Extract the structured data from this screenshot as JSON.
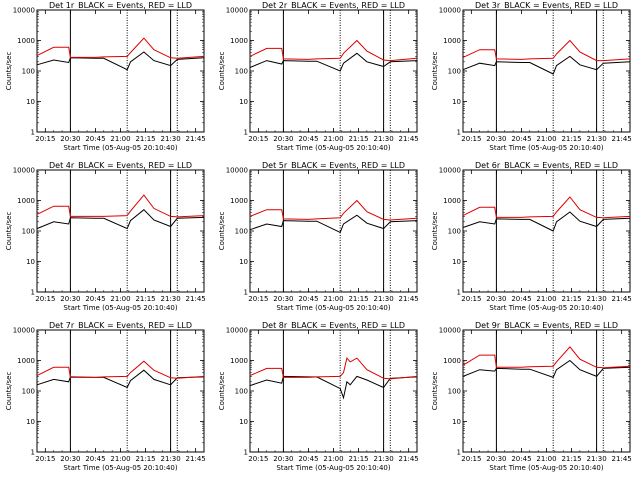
{
  "chart_data": [
    {
      "type": "line",
      "title": "Det 1r_BLACK = Events, RED = LLD",
      "xlabel": "Start Time (05-Aug-05 20:10:40)",
      "ylabel": "Counts/sec",
      "x_ticks": [
        "20:15",
        "20:30",
        "20:45",
        "21:00",
        "21:15",
        "21:30",
        "21:45"
      ],
      "y_ticks": [
        "1",
        "10",
        "100",
        "1000",
        "10000"
      ],
      "y_scale": "log",
      "ylim": [
        1,
        10000
      ],
      "xlim": [
        "20:10",
        "21:50"
      ],
      "vertical_markers": [
        "20:30",
        "21:04",
        "21:30",
        "21:34"
      ],
      "series": [
        {
          "name": "BLACK = Events",
          "color": "#000000",
          "x": [
            "20:10",
            "20:20",
            "20:29",
            "20:30",
            "20:45",
            "20:50",
            "21:04",
            "21:06",
            "21:14",
            "21:20",
            "21:30",
            "21:34",
            "21:50"
          ],
          "y": [
            160,
            230,
            190,
            270,
            260,
            260,
            110,
            200,
            420,
            220,
            150,
            240,
            270
          ]
        },
        {
          "name": "RED = LLD",
          "color": "#dd0000",
          "x": [
            "20:10",
            "20:20",
            "20:29",
            "20:30",
            "20:45",
            "20:50",
            "21:04",
            "21:06",
            "21:14",
            "21:20",
            "21:30",
            "21:34",
            "21:50"
          ],
          "y": [
            320,
            600,
            600,
            280,
            280,
            290,
            300,
            400,
            1200,
            500,
            270,
            260,
            300
          ]
        }
      ]
    },
    {
      "type": "line",
      "title": "Det 2r_BLACK = Events, RED = LLD",
      "xlabel": "Start Time (05-Aug-05 20:10:40)",
      "ylabel": "Counts/sec",
      "x_ticks": [
        "20:15",
        "20:30",
        "20:45",
        "21:00",
        "21:15",
        "21:30",
        "21:45"
      ],
      "y_ticks": [
        "1",
        "10",
        "100",
        "1000",
        "10000"
      ],
      "y_scale": "log",
      "ylim": [
        1,
        10000
      ],
      "xlim": [
        "20:10",
        "21:50"
      ],
      "vertical_markers": [
        "20:30",
        "21:04",
        "21:30",
        "21:34"
      ],
      "series": [
        {
          "name": "BLACK = Events",
          "color": "#000000",
          "x": [
            "20:10",
            "20:20",
            "20:29",
            "20:30",
            "20:45",
            "20:50",
            "21:04",
            "21:06",
            "21:14",
            "21:20",
            "21:30",
            "21:34",
            "21:50"
          ],
          "y": [
            130,
            220,
            170,
            220,
            210,
            210,
            100,
            180,
            380,
            200,
            140,
            200,
            220
          ]
        },
        {
          "name": "RED = LLD",
          "color": "#dd0000",
          "x": [
            "20:10",
            "20:20",
            "20:29",
            "20:30",
            "20:45",
            "20:50",
            "21:04",
            "21:06",
            "21:14",
            "21:20",
            "21:30",
            "21:34",
            "21:50"
          ],
          "y": [
            300,
            550,
            550,
            250,
            240,
            250,
            260,
            380,
            1000,
            450,
            230,
            220,
            260
          ]
        }
      ]
    },
    {
      "type": "line",
      "title": "Det 3r_BLACK = Events, RED = LLD",
      "xlabel": "Start Time (05-Aug-05 20:10:40)",
      "ylabel": "Counts/sec",
      "x_ticks": [
        "20:15",
        "20:30",
        "20:45",
        "21:00",
        "21:15",
        "21:30",
        "21:45"
      ],
      "y_ticks": [
        "1",
        "10",
        "100",
        "1000",
        "10000"
      ],
      "y_scale": "log",
      "ylim": [
        1,
        10000
      ],
      "xlim": [
        "20:10",
        "21:50"
      ],
      "vertical_markers": [
        "20:30",
        "21:04",
        "21:30",
        "21:34"
      ],
      "series": [
        {
          "name": "BLACK = Events",
          "color": "#000000",
          "x": [
            "20:10",
            "20:20",
            "20:29",
            "20:30",
            "20:45",
            "20:50",
            "21:04",
            "21:06",
            "21:14",
            "21:20",
            "21:30",
            "21:34",
            "21:50"
          ],
          "y": [
            110,
            180,
            150,
            200,
            190,
            190,
            80,
            150,
            300,
            160,
            110,
            180,
            200
          ]
        },
        {
          "name": "RED = LLD",
          "color": "#dd0000",
          "x": [
            "20:10",
            "20:20",
            "20:29",
            "20:30",
            "20:45",
            "20:50",
            "21:04",
            "21:06",
            "21:14",
            "21:20",
            "21:30",
            "21:34",
            "21:50"
          ],
          "y": [
            280,
            500,
            500,
            250,
            240,
            250,
            260,
            360,
            1000,
            420,
            220,
            220,
            250
          ]
        }
      ]
    },
    {
      "type": "line",
      "title": "Det 4r_BLACK = Events, RED = LLD",
      "xlabel": "Start Time (05-Aug-05 20:10:40)",
      "ylabel": "Counts/sec",
      "x_ticks": [
        "20:15",
        "20:30",
        "20:45",
        "21:00",
        "21:15",
        "21:30",
        "21:45"
      ],
      "y_ticks": [
        "1",
        "10",
        "100",
        "1000",
        "10000"
      ],
      "y_scale": "log",
      "ylim": [
        1,
        10000
      ],
      "xlim": [
        "20:10",
        "21:50"
      ],
      "vertical_markers": [
        "20:30",
        "21:04",
        "21:30",
        "21:34"
      ],
      "series": [
        {
          "name": "BLACK = Events",
          "color": "#000000",
          "x": [
            "20:10",
            "20:20",
            "20:29",
            "20:30",
            "20:45",
            "20:50",
            "21:04",
            "21:06",
            "21:14",
            "21:20",
            "21:30",
            "21:34",
            "21:50"
          ],
          "y": [
            120,
            200,
            170,
            270,
            260,
            260,
            120,
            220,
            500,
            230,
            140,
            260,
            280
          ]
        },
        {
          "name": "RED = LLD",
          "color": "#dd0000",
          "x": [
            "20:10",
            "20:20",
            "20:29",
            "20:30",
            "20:45",
            "20:50",
            "21:04",
            "21:06",
            "21:14",
            "21:20",
            "21:30",
            "21:34",
            "21:50"
          ],
          "y": [
            350,
            650,
            650,
            300,
            300,
            300,
            320,
            450,
            1500,
            550,
            300,
            290,
            320
          ]
        }
      ]
    },
    {
      "type": "line",
      "title": "Det 5r_BLACK = Events, RED = LLD",
      "xlabel": "Start Time (05-Aug-05 20:10:40)",
      "ylabel": "Counts/sec",
      "x_ticks": [
        "20:15",
        "20:30",
        "20:45",
        "21:00",
        "21:15",
        "21:30",
        "21:45"
      ],
      "y_ticks": [
        "1",
        "10",
        "100",
        "1000",
        "10000"
      ],
      "y_scale": "log",
      "ylim": [
        1,
        10000
      ],
      "xlim": [
        "20:10",
        "21:50"
      ],
      "vertical_markers": [
        "20:30",
        "21:04",
        "21:30",
        "21:34"
      ],
      "series": [
        {
          "name": "BLACK = Events",
          "color": "#000000",
          "x": [
            "20:10",
            "20:20",
            "20:29",
            "20:30",
            "20:45",
            "20:50",
            "21:04",
            "21:06",
            "21:14",
            "21:20",
            "21:30",
            "21:34",
            "21:50"
          ],
          "y": [
            110,
            170,
            140,
            220,
            210,
            210,
            90,
            170,
            330,
            180,
            120,
            200,
            220
          ]
        },
        {
          "name": "RED = LLD",
          "color": "#dd0000",
          "x": [
            "20:10",
            "20:20",
            "20:29",
            "20:30",
            "20:45",
            "20:50",
            "21:04",
            "21:06",
            "21:14",
            "21:20",
            "21:30",
            "21:34",
            "21:50"
          ],
          "y": [
            300,
            500,
            500,
            250,
            240,
            250,
            270,
            380,
            1000,
            430,
            240,
            230,
            260
          ]
        }
      ]
    },
    {
      "type": "line",
      "title": "Det 6r_BLACK = Events, RED = LLD",
      "xlabel": "Start Time (05-Aug-05 20:10:40)",
      "ylabel": "Counts/sec",
      "x_ticks": [
        "20:15",
        "20:30",
        "20:45",
        "21:00",
        "21:15",
        "21:30",
        "21:45"
      ],
      "y_ticks": [
        "1",
        "10",
        "100",
        "1000",
        "10000"
      ],
      "y_scale": "log",
      "ylim": [
        1,
        10000
      ],
      "xlim": [
        "20:10",
        "21:50"
      ],
      "vertical_markers": [
        "20:30",
        "21:04",
        "21:30",
        "21:34"
      ],
      "series": [
        {
          "name": "BLACK = Events",
          "color": "#000000",
          "x": [
            "20:10",
            "20:20",
            "20:29",
            "20:30",
            "20:45",
            "20:50",
            "21:04",
            "21:06",
            "21:14",
            "21:20",
            "21:30",
            "21:34",
            "21:50"
          ],
          "y": [
            130,
            200,
            170,
            250,
            240,
            240,
            100,
            200,
            420,
            210,
            140,
            240,
            260
          ]
        },
        {
          "name": "RED = LLD",
          "color": "#dd0000",
          "x": [
            "20:10",
            "20:20",
            "20:29",
            "20:30",
            "20:45",
            "20:50",
            "21:04",
            "21:06",
            "21:14",
            "21:20",
            "21:30",
            "21:34",
            "21:50"
          ],
          "y": [
            320,
            600,
            600,
            280,
            280,
            290,
            300,
            420,
            1300,
            500,
            280,
            270,
            300
          ]
        }
      ]
    },
    {
      "type": "line",
      "title": "Det 7r_BLACK = Events, RED = LLD",
      "xlabel": "Start Time (05-Aug-05 20:10:40)",
      "ylabel": "Counts/sec",
      "x_ticks": [
        "20:15",
        "20:30",
        "20:45",
        "21:00",
        "21:15",
        "21:30",
        "21:45"
      ],
      "y_ticks": [
        "1",
        "10",
        "100",
        "1000",
        "10000"
      ],
      "y_scale": "log",
      "ylim": [
        1,
        10000
      ],
      "xlim": [
        "20:10",
        "21:50"
      ],
      "vertical_markers": [
        "20:30",
        "21:04",
        "21:30",
        "21:34"
      ],
      "series": [
        {
          "name": "BLACK = Events",
          "color": "#000000",
          "x": [
            "20:10",
            "20:20",
            "20:29",
            "20:30",
            "20:45",
            "20:50",
            "21:04",
            "21:06",
            "21:14",
            "21:20",
            "21:30",
            "21:34",
            "21:50"
          ],
          "y": [
            160,
            240,
            200,
            290,
            280,
            280,
            130,
            220,
            480,
            240,
            160,
            270,
            290
          ]
        },
        {
          "name": "RED = LLD",
          "color": "#dd0000",
          "x": [
            "20:10",
            "20:20",
            "20:29",
            "20:30",
            "20:45",
            "20:50",
            "21:04",
            "21:06",
            "21:14",
            "21:20",
            "21:30",
            "21:34",
            "21:50"
          ],
          "y": [
            320,
            600,
            600,
            280,
            280,
            290,
            300,
            400,
            950,
            480,
            270,
            260,
            300
          ]
        }
      ]
    },
    {
      "type": "line",
      "title": "Det 8r_BLACK = Events, RED = LLD",
      "xlabel": "Start Time (05-Aug-05 20:10:40)",
      "ylabel": "Counts/sec",
      "x_ticks": [
        "20:15",
        "20:30",
        "20:45",
        "21:00",
        "21:15",
        "21:30",
        "21:45"
      ],
      "y_ticks": [
        "1",
        "10",
        "100",
        "1000",
        "10000"
      ],
      "y_scale": "log",
      "ylim": [
        1,
        10000
      ],
      "xlim": [
        "20:10",
        "21:50"
      ],
      "vertical_markers": [
        "20:30",
        "21:04",
        "21:30",
        "21:34"
      ],
      "series": [
        {
          "name": "BLACK = Events",
          "color": "#000000",
          "x": [
            "20:10",
            "20:20",
            "20:29",
            "20:30",
            "20:45",
            "20:50",
            "21:04",
            "21:06",
            "21:08",
            "21:10",
            "21:14",
            "21:20",
            "21:30",
            "21:34",
            "21:50"
          ],
          "y": [
            150,
            230,
            180,
            300,
            290,
            290,
            120,
            60,
            200,
            160,
            300,
            230,
            130,
            260,
            290
          ]
        },
        {
          "name": "RED = LLD",
          "color": "#dd0000",
          "x": [
            "20:10",
            "20:20",
            "20:29",
            "20:30",
            "20:45",
            "20:50",
            "21:04",
            "21:06",
            "21:08",
            "21:10",
            "21:14",
            "21:20",
            "21:30",
            "21:34",
            "21:50"
          ],
          "y": [
            320,
            550,
            550,
            280,
            280,
            290,
            300,
            400,
            1200,
            900,
            1200,
            500,
            260,
            250,
            300
          ]
        }
      ]
    },
    {
      "type": "line",
      "title": "Det 9r_BLACK = Events, RED = LLD",
      "xlabel": "Start Time (05-Aug-05 20:10:40)",
      "ylabel": "Counts/sec",
      "x_ticks": [
        "20:15",
        "20:30",
        "20:45",
        "21:00",
        "21:15",
        "21:30",
        "21:45"
      ],
      "y_ticks": [
        "1",
        "10",
        "100",
        "1000",
        "10000"
      ],
      "y_scale": "log",
      "ylim": [
        1,
        10000
      ],
      "xlim": [
        "20:10",
        "21:50"
      ],
      "vertical_markers": [
        "20:30",
        "21:04",
        "21:30",
        "21:34"
      ],
      "series": [
        {
          "name": "BLACK = Events",
          "color": "#000000",
          "x": [
            "20:10",
            "20:20",
            "20:29",
            "20:30",
            "20:45",
            "20:50",
            "21:04",
            "21:06",
            "21:14",
            "21:20",
            "21:30",
            "21:34",
            "21:50"
          ],
          "y": [
            300,
            500,
            450,
            550,
            520,
            520,
            280,
            500,
            1000,
            500,
            300,
            550,
            600
          ]
        },
        {
          "name": "RED = LLD",
          "color": "#dd0000",
          "x": [
            "20:10",
            "20:20",
            "20:29",
            "20:30",
            "20:45",
            "20:50",
            "21:04",
            "21:06",
            "21:14",
            "21:20",
            "21:30",
            "21:34",
            "21:50"
          ],
          "y": [
            700,
            1500,
            1500,
            600,
            600,
            620,
            650,
            900,
            2800,
            1100,
            600,
            580,
            650
          ]
        }
      ]
    }
  ]
}
